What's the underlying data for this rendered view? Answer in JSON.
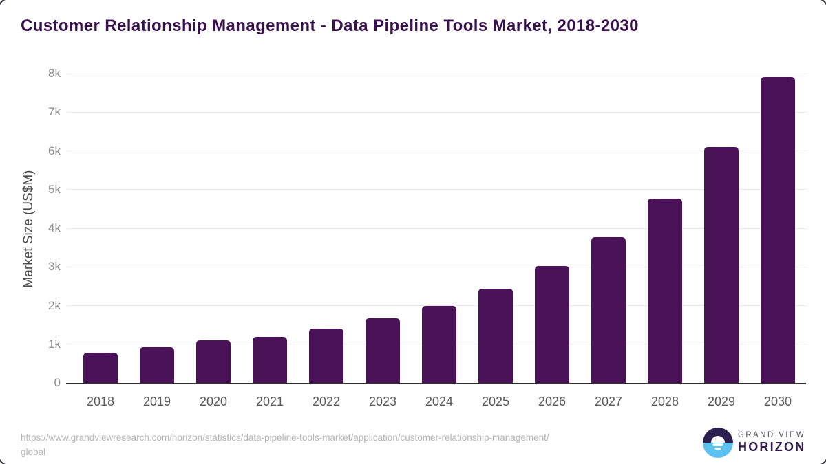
{
  "header": {
    "title": "Customer Relationship Management - Data Pipeline Tools Market, 2018-2030"
  },
  "chart_data": {
    "type": "bar",
    "title": "Customer Relationship Management - Data Pipeline Tools Market, 2018-2030",
    "categories": [
      "2018",
      "2019",
      "2020",
      "2021",
      "2022",
      "2023",
      "2024",
      "2025",
      "2026",
      "2027",
      "2028",
      "2029",
      "2030"
    ],
    "values": [
      790,
      930,
      1100,
      1190,
      1400,
      1665,
      2000,
      2440,
      3020,
      3770,
      4760,
      6100,
      7920
    ],
    "xlabel": "",
    "ylabel": "Market Size (US$M)",
    "ylim": [
      0,
      8000
    ],
    "y_ticks": [
      {
        "value": 0,
        "label": "0"
      },
      {
        "value": 1000,
        "label": "1k"
      },
      {
        "value": 2000,
        "label": "2k"
      },
      {
        "value": 3000,
        "label": "3k"
      },
      {
        "value": 4000,
        "label": "4k"
      },
      {
        "value": 5000,
        "label": "5k"
      },
      {
        "value": 6000,
        "label": "6k"
      },
      {
        "value": 7000,
        "label": "7k"
      },
      {
        "value": 8000,
        "label": "8k"
      }
    ],
    "grid": "horizontal",
    "legend": "none",
    "bar_color": "#4a1357"
  },
  "footer": {
    "source_lines": [
      "https://www.grandviewresearch.com/horizon/statistics/data-pipeline-tools-market/application/customer-relationship-management/",
      "global"
    ],
    "brand": {
      "top": "GRAND VIEW",
      "bottom": "HORIZON"
    }
  },
  "colors": {
    "title_text": "#38104d",
    "bar": "#4a1357",
    "y_axis_title": "#4c4c4c",
    "y_tick_text": "#8c8c8c",
    "x_tick_text": "#595959",
    "gridline": "#e8e8e8",
    "baseline": "#2f2f2f",
    "source_text": "#b4b4b4",
    "logo_top": "#2b2150",
    "logo_bottom": "#5cc1ee",
    "brand_top_text": "#4d4d5e",
    "brand_bottom_text": "#30194d"
  }
}
